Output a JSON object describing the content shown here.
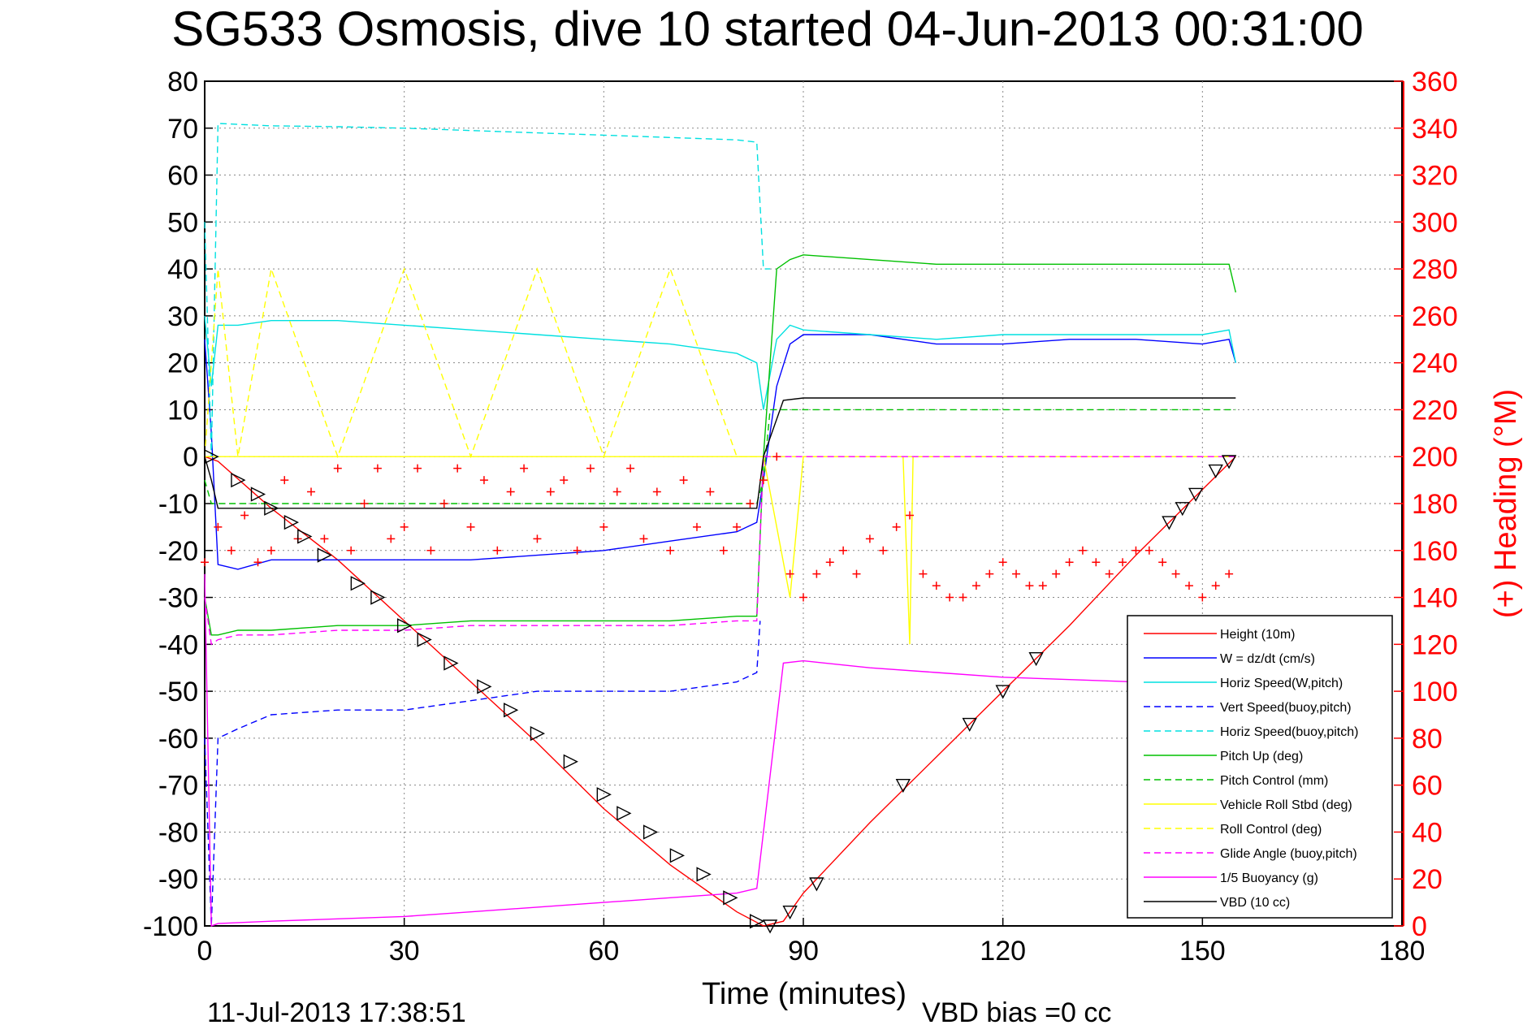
{
  "chart_data": {
    "type": "line",
    "title": "SG533 Osmosis, dive 10 started 04-Jun-2013 00:31:00",
    "xlabel": "Time (minutes)",
    "ylabel": "",
    "ylabel_right": "(+) Heading (°M)",
    "footer_left": "11-Jul-2013 17:38:51",
    "footer_right": "VBD bias =0 cc",
    "xlim": [
      0,
      180
    ],
    "ylim": [
      -100,
      80
    ],
    "ylim_right": [
      0,
      360
    ],
    "xticks": [
      "0",
      "30",
      "60",
      "90",
      "120",
      "150",
      "180"
    ],
    "yticks": [
      "80",
      "70",
      "60",
      "50",
      "40",
      "30",
      "20",
      "10",
      "0",
      "-10",
      "-20",
      "-30",
      "-40",
      "-50",
      "-60",
      "-70",
      "-80",
      "-90",
      "-100"
    ],
    "yticks_right": [
      "360",
      "340",
      "320",
      "300",
      "280",
      "260",
      "240",
      "220",
      "200",
      "180",
      "160",
      "140",
      "120",
      "100",
      "80",
      "60",
      "40",
      "20",
      "0"
    ],
    "grid": true,
    "legend_position": "bottom-right",
    "series": [
      {
        "name": "Height (10m)",
        "color": "#ff0000",
        "style": "solid",
        "x": [
          0,
          2,
          10,
          20,
          30,
          40,
          50,
          60,
          70,
          80,
          84,
          87,
          90,
          100,
          110,
          120,
          130,
          140,
          150,
          155
        ],
        "y": [
          0,
          -1,
          -11,
          -22,
          -35,
          -48,
          -61,
          -75,
          -87,
          -97,
          -100,
          -99,
          -93,
          -78,
          -64,
          -50,
          -36,
          -21,
          -7,
          0
        ]
      },
      {
        "name": "W = dz/dt (cm/s)",
        "color": "#0000ff",
        "style": "solid",
        "x": [
          0,
          1,
          2,
          5,
          10,
          20,
          30,
          40,
          50,
          60,
          70,
          80,
          83,
          84,
          86,
          88,
          90,
          100,
          110,
          120,
          130,
          140,
          150,
          154,
          155
        ],
        "y": [
          25,
          5,
          -23,
          -24,
          -22,
          -22,
          -22,
          -22,
          -21,
          -20,
          -18,
          -16,
          -14,
          -5,
          15,
          24,
          26,
          26,
          24,
          24,
          25,
          25,
          24,
          25,
          20
        ]
      },
      {
        "name": "Horiz Speed(W,pitch)",
        "color": "#00e0e0",
        "style": "solid",
        "x": [
          0,
          1,
          2,
          5,
          10,
          20,
          30,
          40,
          50,
          60,
          70,
          80,
          83,
          84,
          86,
          88,
          90,
          100,
          110,
          120,
          130,
          140,
          150,
          154,
          155
        ],
        "y": [
          30,
          15,
          28,
          28,
          29,
          29,
          28,
          27,
          26,
          25,
          24,
          22,
          20,
          10,
          25,
          28,
          27,
          26,
          25,
          26,
          26,
          26,
          26,
          27,
          20
        ]
      },
      {
        "name": "Vert Speed(buoy,pitch)",
        "color": "#0000ff",
        "style": "dashed",
        "x": [
          0,
          1,
          2,
          5,
          10,
          20,
          30,
          40,
          50,
          60,
          70,
          80,
          83,
          83.5
        ],
        "y": [
          -60,
          -100,
          -60,
          -58,
          -55,
          -54,
          -54,
          -52,
          -50,
          -50,
          -50,
          -48,
          -46,
          -35
        ]
      },
      {
        "name": "Horiz Speed(buoy,pitch)",
        "color": "#00e0e0",
        "style": "dashed",
        "x": [
          0,
          1,
          2,
          10,
          20,
          30,
          40,
          50,
          60,
          70,
          80,
          83,
          84,
          85
        ],
        "y": [
          50,
          0,
          71,
          70.5,
          70.3,
          70,
          69.5,
          69,
          68.5,
          68,
          67.5,
          67,
          40,
          40
        ]
      },
      {
        "name": "Pitch Up (deg)",
        "color": "#00c000",
        "style": "solid",
        "x": [
          0,
          1,
          2,
          5,
          10,
          20,
          30,
          40,
          50,
          60,
          70,
          80,
          83,
          84,
          86,
          88,
          90,
          100,
          110,
          120,
          130,
          140,
          150,
          154,
          155
        ],
        "y": [
          -30,
          -38,
          -38,
          -37,
          -37,
          -36,
          -36,
          -35,
          -35,
          -35,
          -35,
          -34,
          -34,
          0,
          40,
          42,
          43,
          42,
          41,
          41,
          41,
          41,
          41,
          41,
          35
        ]
      },
      {
        "name": "Pitch Control (mm)",
        "color": "#00c000",
        "style": "dashed",
        "x": [
          0,
          1,
          2,
          80,
          83,
          84,
          85,
          87,
          155
        ],
        "y": [
          -5,
          -10,
          -10,
          -10,
          -10,
          -5,
          10,
          10,
          10
        ]
      },
      {
        "name": "Vehicle Roll Stbd (deg)",
        "color": "#ffff00",
        "style": "solid",
        "x": [
          0,
          83,
          84,
          88,
          90,
          100,
          105,
          106,
          106.5,
          110,
          120,
          130,
          140,
          150,
          155
        ],
        "y": [
          0,
          0,
          0,
          -30,
          0,
          0,
          0,
          -40,
          0,
          0,
          0,
          0,
          0,
          0,
          0
        ]
      },
      {
        "name": "Roll Control (deg)",
        "color": "#ffff00",
        "style": "dashed",
        "x": [
          0,
          1,
          2,
          5,
          10,
          20,
          30,
          40,
          50,
          60,
          70,
          80,
          84,
          85,
          155
        ],
        "y": [
          0,
          20,
          40,
          0,
          40,
          0,
          40,
          0,
          40,
          0,
          40,
          0,
          0,
          0,
          0
        ]
      },
      {
        "name": "Glide Angle (buoy,pitch)",
        "color": "#ff00ff",
        "style": "dashed",
        "x": [
          0,
          1,
          2,
          5,
          10,
          20,
          30,
          40,
          50,
          60,
          70,
          80,
          83,
          84,
          155
        ],
        "y": [
          -30,
          -40,
          -39,
          -38,
          -38,
          -37,
          -37,
          -36,
          -36,
          -36,
          -36,
          -35,
          -35,
          0,
          0
        ]
      },
      {
        "name": "1/5 Buoyancy (g)",
        "color": "#ff00ff",
        "style": "solid",
        "x": [
          0,
          1,
          2,
          10,
          20,
          30,
          40,
          50,
          60,
          70,
          80,
          83,
          84,
          87,
          90,
          100,
          110,
          120,
          130,
          140,
          150,
          155
        ],
        "y": [
          -25,
          -100,
          -99.5,
          -99,
          -98.5,
          -98,
          -97,
          -96,
          -95,
          -94,
          -93,
          -92,
          -80,
          -44,
          -43.5,
          -45,
          -46,
          -47,
          -47.5,
          -48,
          -48,
          -48
        ]
      },
      {
        "name": "VBD (10 cc)",
        "color": "#000000",
        "style": "solid",
        "x": [
          0,
          1,
          2,
          10,
          20,
          30,
          40,
          50,
          60,
          70,
          80,
          83,
          84,
          87,
          90,
          100,
          120,
          150,
          155
        ],
        "y": [
          0,
          -5,
          -11,
          -11,
          -11,
          -11,
          -11,
          -11,
          -11,
          -11,
          -11,
          -11,
          0,
          12,
          12.5,
          12.5,
          12.5,
          12.5,
          12.5
        ]
      }
    ],
    "heading_scatter": {
      "name": "Heading (°M)",
      "color": "#ff0000",
      "marker": "+",
      "axis": "right",
      "x": [
        0,
        2,
        4,
        6,
        8,
        10,
        12,
        14,
        16,
        18,
        20,
        22,
        24,
        26,
        28,
        30,
        32,
        34,
        36,
        38,
        40,
        42,
        44,
        46,
        48,
        50,
        52,
        54,
        56,
        58,
        60,
        62,
        64,
        66,
        68,
        70,
        72,
        74,
        76,
        78,
        80,
        82,
        84,
        86,
        88,
        90,
        92,
        94,
        96,
        98,
        100,
        102,
        104,
        106,
        108,
        110,
        112,
        114,
        116,
        118,
        120,
        122,
        124,
        126,
        128,
        130,
        132,
        134,
        136,
        138,
        140,
        142,
        144,
        146,
        148,
        150,
        152,
        154
      ],
      "y": [
        155,
        170,
        160,
        175,
        155,
        160,
        190,
        165,
        185,
        165,
        195,
        160,
        180,
        195,
        165,
        170,
        195,
        160,
        180,
        195,
        170,
        190,
        160,
        185,
        195,
        165,
        185,
        190,
        160,
        195,
        170,
        185,
        195,
        165,
        185,
        160,
        190,
        170,
        185,
        160,
        170,
        180,
        190,
        200,
        150,
        140,
        150,
        155,
        160,
        150,
        165,
        160,
        170,
        175,
        150,
        145,
        140,
        140,
        145,
        150,
        155,
        150,
        145,
        145,
        150,
        155,
        160,
        155,
        150,
        155,
        160,
        160,
        155,
        150,
        145,
        140,
        145,
        150
      ]
    },
    "markers": {
      "color": "#000000",
      "marker": "triangle",
      "x": [
        1,
        5,
        8,
        10,
        13,
        15,
        18,
        23,
        26,
        30,
        33,
        37,
        42,
        46,
        50,
        55,
        60,
        63,
        67,
        71,
        75,
        79,
        83,
        85,
        88,
        92,
        105,
        115,
        120,
        125,
        145,
        147,
        149,
        152,
        154
      ],
      "y": [
        0,
        -5,
        -8,
        -11,
        -14,
        -17,
        -21,
        -27,
        -30,
        -36,
        -39,
        -44,
        -49,
        -54,
        -59,
        -65,
        -72,
        -76,
        -80,
        -85,
        -89,
        -94,
        -99,
        -100,
        -97,
        -91,
        -70,
        -57,
        -50,
        -43,
        -14,
        -11,
        -8,
        -3,
        -1
      ]
    }
  }
}
